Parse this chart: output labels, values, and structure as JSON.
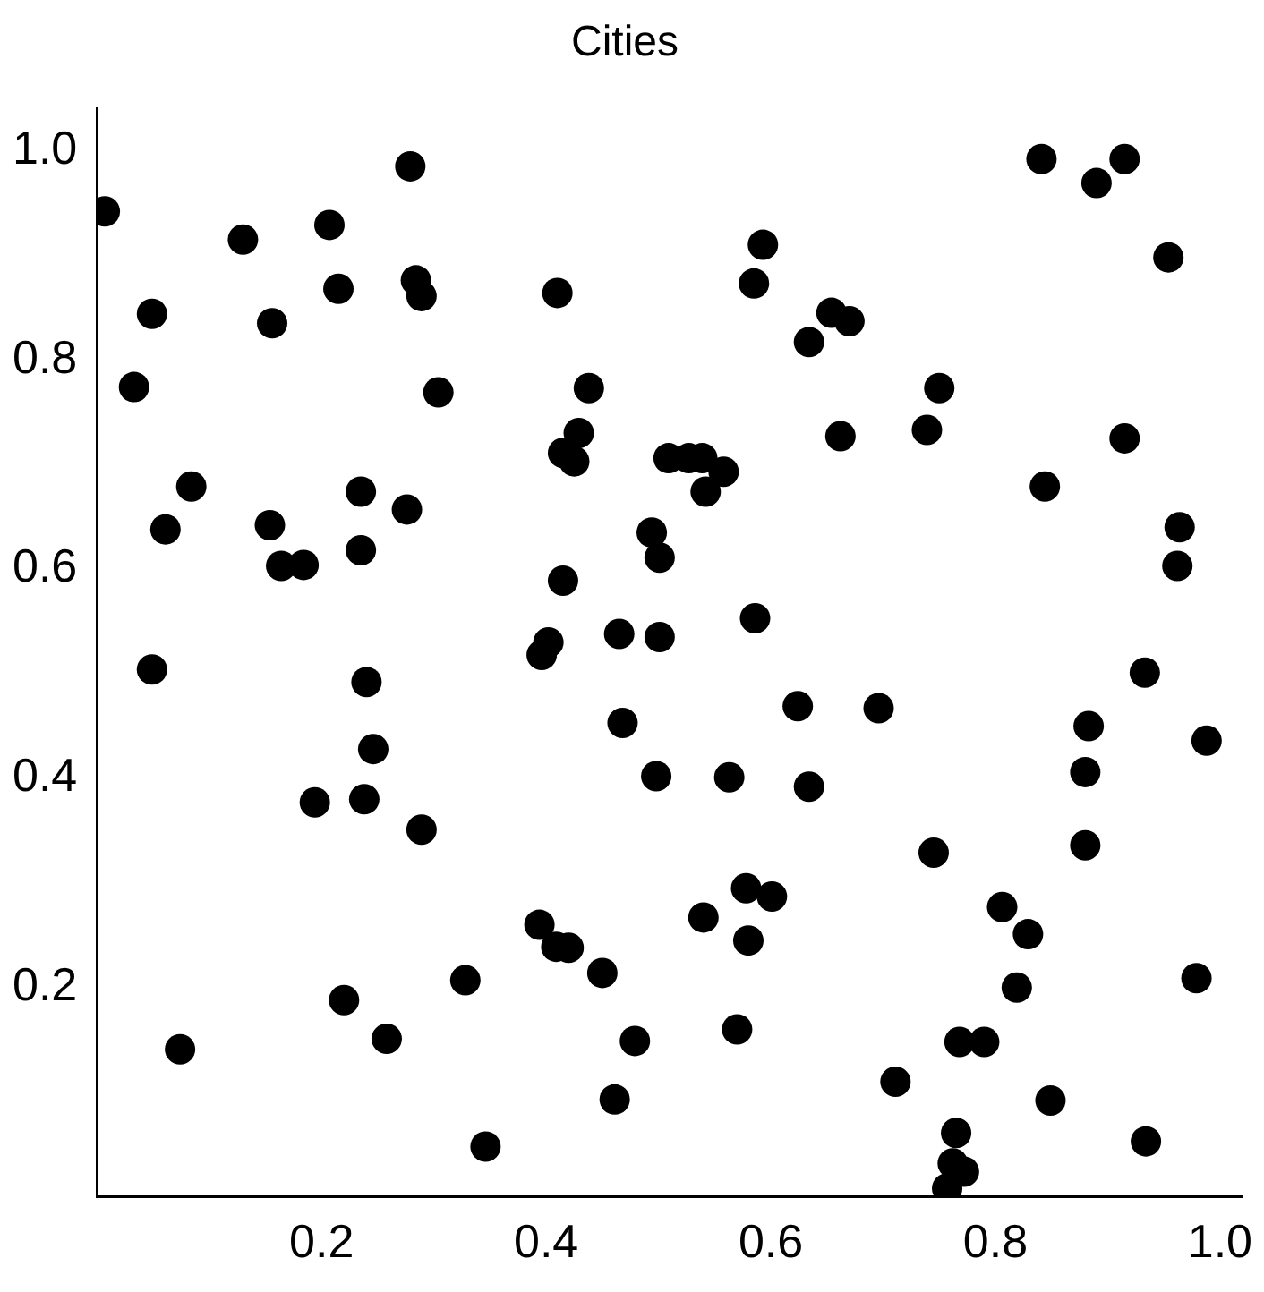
{
  "chart_data": {
    "type": "scatter",
    "title": "Cities",
    "marker": "circle",
    "grid": false,
    "legend": false,
    "xlim": [
      0,
      1.02
    ],
    "ylim": [
      0,
      1.04
    ],
    "xticks": [
      {
        "value": 0.2,
        "label": "0.2"
      },
      {
        "value": 0.4,
        "label": "0.4"
      },
      {
        "value": 0.6,
        "label": "0.6"
      },
      {
        "value": 0.8,
        "label": "0.8"
      },
      {
        "value": 1,
        "label": "1.0"
      }
    ],
    "yticks": [
      {
        "value": 0.2,
        "label": "0.2"
      },
      {
        "value": 0.4,
        "label": "0.4"
      },
      {
        "value": 0.6,
        "label": "0.6"
      },
      {
        "value": 0.8,
        "label": "0.8"
      },
      {
        "value": 1,
        "label": "1.0"
      }
    ],
    "series": [
      {
        "color": "#000000",
        "x": [
          0.007,
          0.033,
          0.049,
          0.074,
          0.084,
          0.049,
          0.061,
          0.13,
          0.156,
          0.154,
          0.164,
          0.184,
          0.207,
          0.215,
          0.235,
          0.235,
          0.24,
          0.246,
          0.238,
          0.194,
          0.22,
          0.258,
          0.279,
          0.284,
          0.289,
          0.304,
          0.276,
          0.289,
          0.328,
          0.346,
          0.41,
          0.438,
          0.429,
          0.415,
          0.425,
          0.415,
          0.402,
          0.396,
          0.465,
          0.468,
          0.394,
          0.409,
          0.42,
          0.45,
          0.479,
          0.461,
          0.494,
          0.501,
          0.501,
          0.498,
          0.509,
          0.527,
          0.539,
          0.542,
          0.558,
          0.54,
          0.563,
          0.57,
          0.578,
          0.58,
          0.601,
          0.586,
          0.585,
          0.593,
          0.624,
          0.634,
          0.634,
          0.654,
          0.67,
          0.662,
          0.696,
          0.711,
          0.739,
          0.75,
          0.745,
          0.768,
          0.765,
          0.762,
          0.772,
          0.757,
          0.79,
          0.806,
          0.829,
          0.819,
          0.841,
          0.844,
          0.849,
          0.88,
          0.883,
          0.88,
          0.89,
          0.915,
          0.915,
          0.954,
          0.933,
          0.964,
          0.962,
          0.988,
          0.979,
          0.934
        ],
        "values": [
          0.942,
          0.774,
          0.504,
          0.141,
          0.679,
          0.844,
          0.638,
          0.915,
          0.835,
          0.642,
          0.603,
          0.604,
          0.929,
          0.868,
          0.674,
          0.618,
          0.492,
          0.428,
          0.38,
          0.377,
          0.188,
          0.151,
          0.985,
          0.876,
          0.861,
          0.769,
          0.657,
          0.351,
          0.207,
          0.048,
          0.864,
          0.773,
          0.73,
          0.711,
          0.703,
          0.589,
          0.53,
          0.518,
          0.538,
          0.453,
          0.26,
          0.239,
          0.238,
          0.214,
          0.149,
          0.093,
          0.635,
          0.611,
          0.535,
          0.402,
          0.706,
          0.706,
          0.706,
          0.674,
          0.693,
          0.267,
          0.401,
          0.16,
          0.295,
          0.245,
          0.287,
          0.553,
          0.873,
          0.91,
          0.469,
          0.392,
          0.817,
          0.845,
          0.837,
          0.727,
          0.467,
          0.11,
          0.733,
          0.773,
          0.329,
          0.148,
          0.061,
          0.032,
          0.024,
          0.008,
          0.148,
          0.277,
          0.251,
          0.2,
          0.992,
          0.679,
          0.092,
          0.406,
          0.45,
          0.336,
          0.969,
          0.992,
          0.725,
          0.898,
          0.501,
          0.64,
          0.603,
          0.436,
          0.209,
          0.053
        ]
      }
    ]
  }
}
